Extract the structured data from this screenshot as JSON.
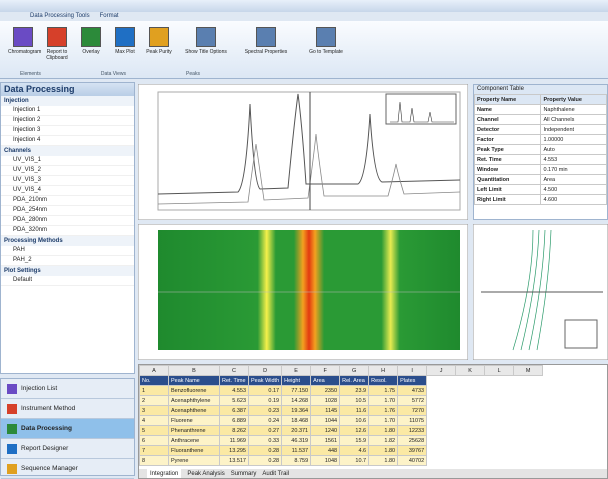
{
  "ribbon": {
    "tabs": [
      "Data Processing Tools",
      "Format"
    ],
    "buttons": [
      "Chromatogram",
      "Report to Clipboard",
      "Overlay",
      "Max Plot",
      "Peak Purity",
      "Show Title Options",
      "Spectral Properties",
      "Go to Template"
    ],
    "groups": [
      "Elements",
      "Data Views",
      "Peaks"
    ]
  },
  "left_panel": {
    "title": "Data Processing",
    "sections": [
      {
        "title": "Injection",
        "items": [
          "Injection 1",
          "Injection 2",
          "Injection 3",
          "Injection 4"
        ]
      },
      {
        "title": "Channels",
        "items": [
          "UV_VIS_1",
          "UV_VIS_2",
          "UV_VIS_3",
          "UV_VIS_4",
          "PDA_210nm",
          "PDA_254nm",
          "PDA_280nm",
          "PDA_320nm"
        ]
      },
      {
        "title": "Processing Methods",
        "items": [
          "PAH",
          "PAH_2"
        ]
      },
      {
        "title": "Plot Settings",
        "items": [
          "Default"
        ]
      }
    ]
  },
  "nav": [
    "Injection List",
    "Instrument Method",
    "Data Processing",
    "Report Designer",
    "Sequence Manager"
  ],
  "properties": {
    "title": "Component Table",
    "header": [
      "Property Name",
      "Property Value"
    ],
    "rows": [
      [
        "Name",
        "Naphthalene"
      ],
      [
        "Channel",
        "All Channels"
      ],
      [
        "Detector",
        "Independent"
      ],
      [
        "Factor",
        "1.00000"
      ],
      [
        "Peak Type",
        "Auto"
      ],
      [
        "Ret. Time",
        "4.553"
      ],
      [
        "Window",
        "0.170 min"
      ],
      [
        "Quantitation",
        "Area"
      ],
      [
        "Left Limit",
        "4.500"
      ],
      [
        "Right Limit",
        "4.600"
      ]
    ]
  },
  "table": {
    "letters": [
      "A",
      "B",
      "C",
      "D",
      "E",
      "F",
      "G",
      "H",
      "I",
      "J",
      "K",
      "L",
      "M"
    ],
    "columns": [
      "No.",
      "Peak Name",
      "Ret. Time",
      "Peak Width",
      "Height",
      "Area",
      "Rel. Area",
      "Resol.",
      "Plates"
    ],
    "rows": [
      [
        "1",
        "Benzofluorene",
        "4.553",
        "0.17",
        "77.150",
        "2350",
        "23.9",
        "1.75",
        "4733"
      ],
      [
        "2",
        "Acenaphthylene",
        "5.623",
        "0.19",
        "14.268",
        "1028",
        "10.5",
        "1.70",
        "5772"
      ],
      [
        "3",
        "Acenaphthene",
        "6.387",
        "0.23",
        "19.364",
        "1145",
        "11.6",
        "1.76",
        "7270"
      ],
      [
        "4",
        "Fluorene",
        "6.889",
        "0.24",
        "18.468",
        "1044",
        "10.6",
        "1.70",
        "11075"
      ],
      [
        "5",
        "Phenanthrene",
        "8.262",
        "0.27",
        "20.371",
        "1240",
        "12.6",
        "1.80",
        "12233"
      ],
      [
        "6",
        "Anthracene",
        "11.969",
        "0.33",
        "46.319",
        "1561",
        "15.9",
        "1.82",
        "25628"
      ],
      [
        "7",
        "Fluoranthene",
        "13.295",
        "0.28",
        "11.537",
        "448",
        "4.6",
        "1.80",
        "39767"
      ],
      [
        "8",
        "Pyrene",
        "13.517",
        "0.28",
        "8.759",
        "1048",
        "10.7",
        "1.80",
        "40702"
      ]
    ]
  },
  "sheet_tabs": [
    "Integration",
    "Peak Analysis",
    "Summary",
    "Audit Trail"
  ]
}
